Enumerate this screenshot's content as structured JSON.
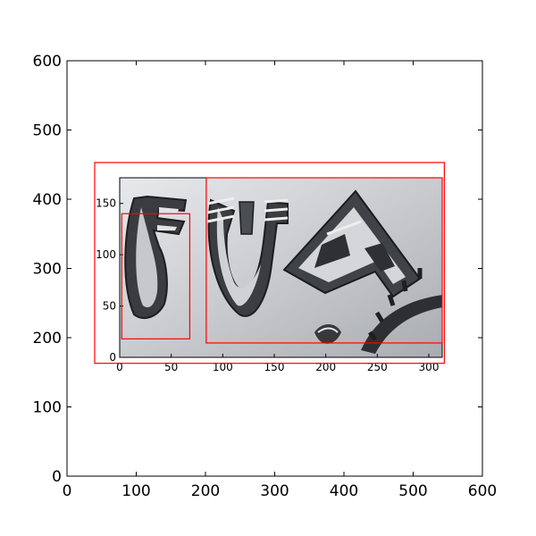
{
  "outer_plot": {
    "x_ticks": [
      "0",
      "100",
      "200",
      "300",
      "400",
      "500",
      "600"
    ],
    "y_ticks": [
      "0",
      "100",
      "200",
      "300",
      "400",
      "500",
      "600"
    ],
    "xlim": [
      0,
      600
    ],
    "ylim": [
      600,
      0
    ]
  },
  "inset_plot": {
    "x_ticks": [
      "0",
      "50",
      "100",
      "150",
      "200",
      "250",
      "300"
    ],
    "y_ticks": [
      "0",
      "50",
      "100",
      "150"
    ],
    "xlim": [
      0,
      313
    ],
    "ylim": [
      175,
      0
    ],
    "image_content": "carved-stone-inscription"
  },
  "boxes": {
    "color": "#ff0000",
    "outer_box_data": [
      40,
      163,
      545,
      453
    ],
    "inset_box_a_data": [
      2,
      18,
      68,
      140
    ],
    "inset_box_b_data": [
      84,
      14,
      313,
      175
    ]
  },
  "colors": {
    "axis": "#000000",
    "stone_light": "#d8dadd",
    "stone_mid": "#b4b7bb",
    "stone_dark": "#2b2c2e",
    "stone_shadow": "#565a5e"
  }
}
